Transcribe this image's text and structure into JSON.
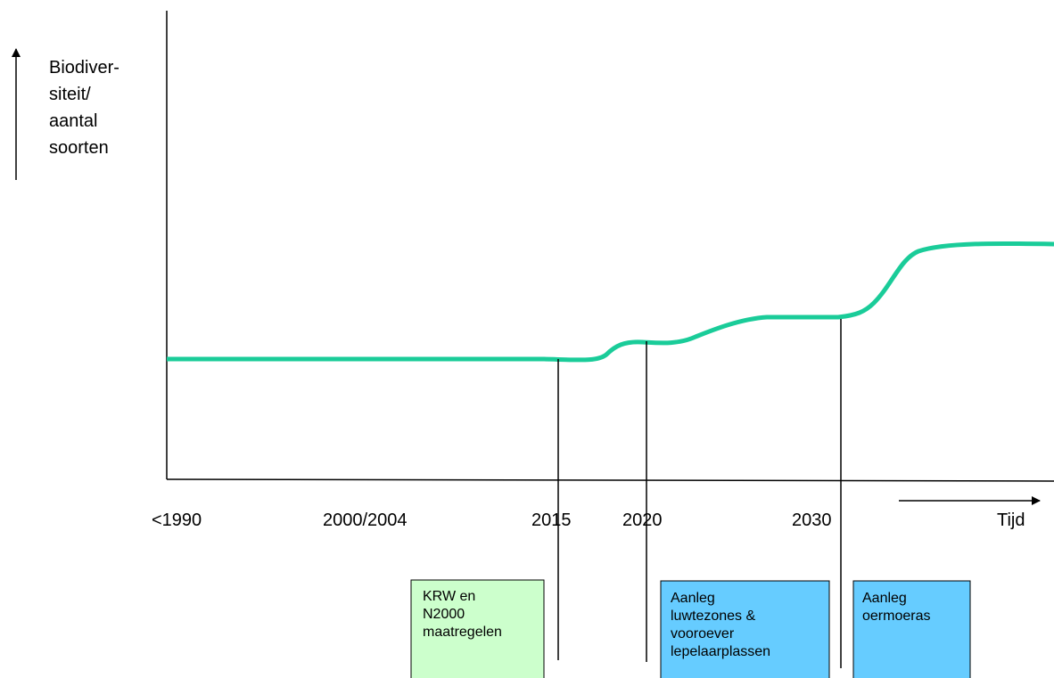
{
  "y_axis_label": [
    "Biodiver-",
    "siteit/",
    "aantal",
    "soorten"
  ],
  "x_labels": [
    "<1990",
    "2000/2004",
    "2015",
    "2020",
    "2030"
  ],
  "x_axis_label": "Tijd",
  "boxes": [
    {
      "lines": [
        "KRW en",
        "N2000",
        "maatregelen"
      ]
    },
    {
      "lines": [
        "Aanleg",
        "luwtezones &",
        "vooroever",
        "lepelaarplassen"
      ]
    },
    {
      "lines": [
        "Aanleg",
        "oermoeras"
      ]
    }
  ]
}
